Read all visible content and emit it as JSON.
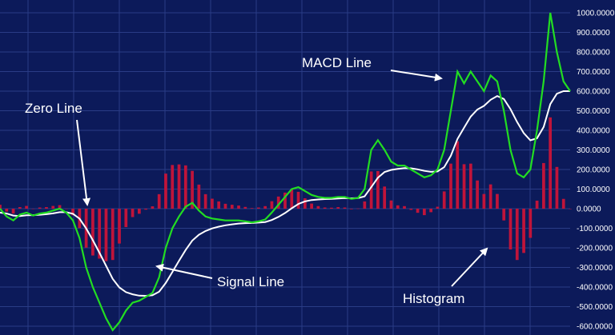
{
  "colors": {
    "background": "#0c1a5a",
    "grid": "#2a3c86",
    "macd": "#22dd22",
    "signal": "#ffffff",
    "histogram": "#c0143a",
    "axis_text": "#ffffff"
  },
  "chart_data": {
    "type": "line",
    "title": "",
    "xlabel": "",
    "ylabel": "",
    "ylim": [
      -600,
      1000
    ],
    "yticks": [
      "1000.0000",
      "900.0000",
      "800.0000",
      "700.0000",
      "600.0000",
      "500.0000",
      "400.0000",
      "300.0000",
      "200.0000",
      "100.0000",
      "0.0000",
      "-100.0000",
      "-200.0000",
      "-300.0000",
      "-400.0000",
      "-500.0000",
      "-600.0000"
    ],
    "grid": true,
    "legend": "none",
    "series": [
      {
        "kind": "line",
        "color": "#22dd22",
        "values": [
          0,
          -40,
          -60,
          -30,
          -20,
          -35,
          -25,
          -20,
          -10,
          0,
          -20,
          -60,
          -150,
          -300,
          -400,
          -480,
          -560,
          -620,
          -580,
          -520,
          -480,
          -470,
          -450,
          -430,
          -350,
          -200,
          -100,
          -40,
          10,
          30,
          -10,
          -40,
          -50,
          -55,
          -60,
          -60,
          -60,
          -65,
          -70,
          -65,
          -55,
          -20,
          20,
          60,
          100,
          110,
          90,
          70,
          60,
          55,
          55,
          60,
          60,
          50,
          55,
          100,
          300,
          350,
          300,
          240,
          220,
          220,
          200,
          180,
          160,
          170,
          200,
          300,
          500,
          700,
          640,
          700,
          650,
          600,
          680,
          650,
          500,
          300,
          180,
          160,
          200,
          400,
          650,
          1000,
          800,
          650,
          600
        ]
      },
      {
        "kind": "line",
        "color": "#ffffff",
        "values": [
          -20,
          -25,
          -35,
          -38,
          -34,
          -33,
          -31,
          -28,
          -24,
          -18,
          -18,
          -26,
          -51,
          -101,
          -161,
          -225,
          -292,
          -358,
          -402,
          -426,
          -437,
          -444,
          -445,
          -442,
          -424,
          -379,
          -323,
          -266,
          -211,
          -163,
          -133,
          -114,
          -101,
          -92,
          -85,
          -80,
          -76,
          -74,
          -73,
          -71,
          -68,
          -58,
          -42,
          -22,
          2,
          24,
          37,
          44,
          47,
          49,
          50,
          52,
          54,
          53,
          54,
          63,
          110,
          158,
          187,
          198,
          203,
          207,
          206,
          201,
          193,
          188,
          190,
          212,
          270,
          356,
          413,
          470,
          506,
          525,
          556,
          575,
          560,
          508,
          442,
          386,
          349,
          359,
          417,
          534,
          587,
          600,
          600
        ]
      },
      {
        "kind": "histogram",
        "color": "#c0143a",
        "values": [
          20,
          -15,
          -25,
          8,
          14,
          -2,
          6,
          8,
          14,
          18,
          -2,
          -34,
          -99,
          -199,
          -239,
          -255,
          -268,
          -262,
          -178,
          -94,
          -43,
          -26,
          -5,
          12,
          74,
          179,
          223,
          226,
          221,
          193,
          123,
          74,
          51,
          37,
          25,
          20,
          16,
          9,
          3,
          6,
          13,
          38,
          62,
          82,
          98,
          86,
          53,
          26,
          13,
          6,
          5,
          8,
          6,
          -3,
          1,
          37,
          190,
          192,
          113,
          42,
          17,
          13,
          -6,
          -21,
          -33,
          -18,
          10,
          88,
          230,
          344,
          227,
          230,
          144,
          75,
          124,
          75,
          -60,
          -208,
          -262,
          -226,
          -149,
          41,
          233,
          466,
          213,
          50,
          0
        ]
      }
    ],
    "annotations": [
      "MACD Line",
      "Zero Line",
      "Signal Line",
      "Histogram"
    ]
  }
}
